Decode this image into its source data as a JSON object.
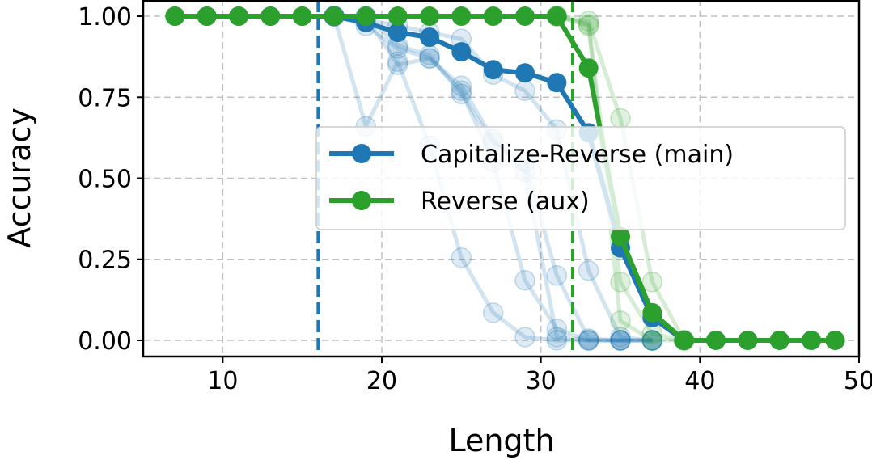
{
  "chart_data": {
    "type": "line",
    "title": "",
    "xlabel": "Length",
    "ylabel": "Accuracy",
    "xlim": [
      5,
      50
    ],
    "ylim": [
      -0.05,
      1.05
    ],
    "xticks": [
      10,
      20,
      30,
      40,
      50
    ],
    "yticks": [
      0.0,
      0.25,
      0.5,
      0.75,
      1.0
    ],
    "xtick_labels": [
      "10",
      "20",
      "30",
      "40",
      "50"
    ],
    "ytick_labels": [
      "0.00",
      "0.25",
      "0.50",
      "0.75",
      "1.00"
    ],
    "grid": true,
    "legend_position": "center-right",
    "colors": {
      "main": "#1f77b4",
      "aux": "#2ca02c"
    },
    "vlines": [
      {
        "x": 16,
        "color": "#1f77b4"
      },
      {
        "x": 32,
        "color": "#2ca02c"
      }
    ],
    "series": [
      {
        "name": "Capitalize-Reverse (main)",
        "color": "#1f77b4",
        "x": [
          7,
          9,
          11,
          13,
          15,
          17,
          19,
          21,
          23,
          25,
          27,
          29,
          31,
          33,
          35,
          37,
          39,
          41,
          43,
          45,
          47,
          48.5
        ],
        "y": [
          1.0,
          1.0,
          1.0,
          1.0,
          1.0,
          1.0,
          0.98,
          0.95,
          0.935,
          0.89,
          0.835,
          0.825,
          0.795,
          0.64,
          0.285,
          0.07,
          0.0,
          0.0,
          0.0,
          0.0,
          0.0,
          0.0
        ]
      },
      {
        "name": "Reverse (aux)",
        "color": "#2ca02c",
        "x": [
          7,
          9,
          11,
          13,
          15,
          17,
          19,
          21,
          23,
          25,
          27,
          29,
          31,
          33,
          35,
          37,
          39,
          41,
          43,
          45,
          47,
          48.5
        ],
        "y": [
          1.0,
          1.0,
          1.0,
          1.0,
          1.0,
          1.0,
          1.0,
          1.0,
          1.0,
          1.0,
          1.0,
          1.0,
          1.0,
          0.84,
          0.32,
          0.085,
          0.0,
          0.0,
          0.0,
          0.0,
          0.0,
          0.0
        ]
      }
    ],
    "faded_series": [
      {
        "color": "#1f77b4",
        "x": [
          17,
          19,
          21,
          23,
          25,
          27,
          29,
          31,
          33,
          35,
          37
        ],
        "y": [
          1.0,
          0.66,
          0.86,
          0.6,
          0.255,
          0.085,
          0.01,
          0.0,
          0.0,
          0.0,
          0.0
        ]
      },
      {
        "color": "#1f77b4",
        "x": [
          17,
          19,
          21,
          23,
          25,
          27,
          29,
          31,
          33,
          35,
          37
        ],
        "y": [
          1.0,
          1.0,
          0.85,
          0.87,
          0.77,
          0.55,
          0.185,
          0.035,
          0.0,
          0.0,
          0.0
        ]
      },
      {
        "color": "#1f77b4",
        "x": [
          17,
          19,
          21,
          23,
          25,
          27,
          29,
          31,
          33,
          35,
          37
        ],
        "y": [
          1.0,
          0.97,
          0.9,
          0.87,
          0.785,
          0.62,
          0.52,
          0.01,
          0.0,
          0.0,
          0.0
        ]
      },
      {
        "color": "#1f77b4",
        "x": [
          17,
          19,
          21,
          23,
          25,
          27,
          29,
          31,
          33,
          35,
          37
        ],
        "y": [
          1.0,
          1.0,
          0.91,
          0.88,
          0.76,
          0.61,
          0.55,
          0.2,
          0.005,
          0.0,
          0.0
        ]
      },
      {
        "color": "#1f77b4",
        "x": [
          17,
          19,
          21,
          23,
          25,
          27,
          29,
          31,
          33,
          35,
          37
        ],
        "y": [
          1.0,
          0.99,
          0.97,
          0.95,
          0.93,
          0.82,
          0.77,
          0.65,
          0.215,
          0.01,
          0.0
        ]
      },
      {
        "color": "#2ca02c",
        "x": [
          31,
          33,
          35,
          37,
          39
        ],
        "y": [
          1.0,
          0.985,
          0.685,
          0.18,
          0.0
        ]
      },
      {
        "color": "#2ca02c",
        "x": [
          31,
          33,
          35,
          37,
          39
        ],
        "y": [
          1.0,
          0.975,
          0.18,
          0.02,
          0.0
        ]
      },
      {
        "color": "#2ca02c",
        "x": [
          31,
          33,
          35,
          37,
          39
        ],
        "y": [
          1.0,
          0.97,
          0.06,
          0.0,
          0.0
        ]
      }
    ]
  }
}
